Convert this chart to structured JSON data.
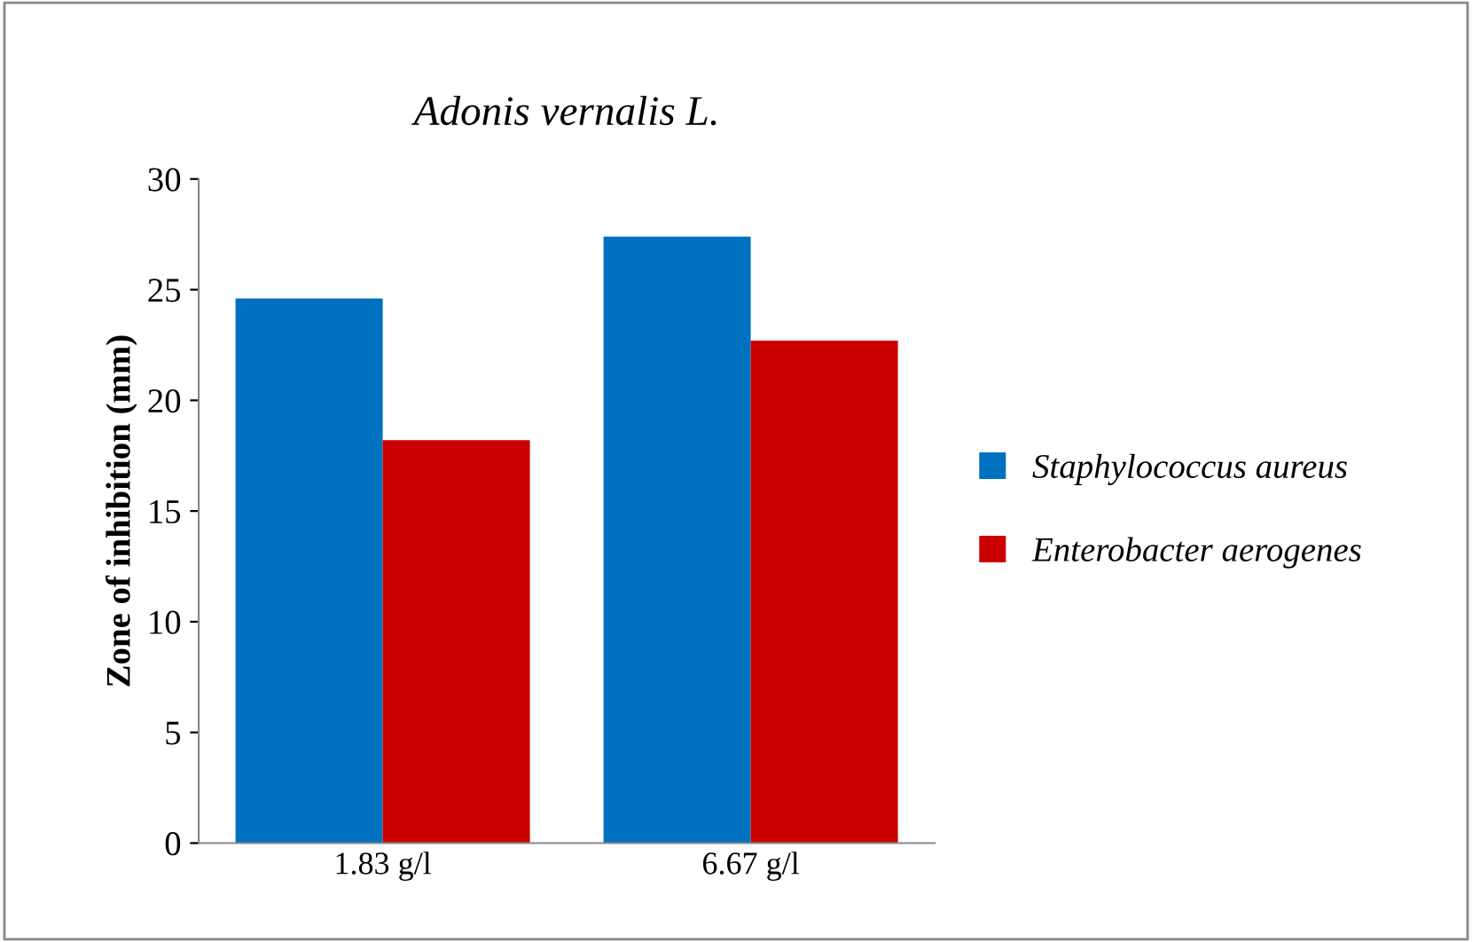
{
  "chart_data": {
    "type": "bar",
    "title": "Adonis vernalis L.",
    "ylabel": "Zone of inhibition (mm)",
    "categories": [
      "1.83 g/l",
      "6.67 g/l"
    ],
    "series": [
      {
        "name": "Staphylococcus aureus",
        "color": "#0070c0",
        "values": [
          24.6,
          27.4
        ]
      },
      {
        "name": "Enterobacter aerogenes",
        "color": "#cc0000",
        "values": [
          18.2,
          22.7
        ]
      }
    ],
    "ylim": [
      0,
      30
    ],
    "yticks": [
      0,
      5,
      10,
      15,
      20,
      25,
      30
    ],
    "grid": false,
    "legend": "right"
  }
}
